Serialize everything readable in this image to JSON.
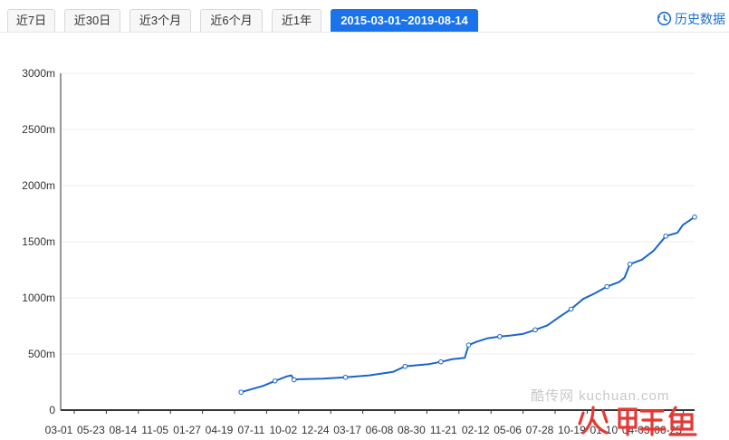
{
  "tabs": [
    {
      "label": "近7日",
      "active": false
    },
    {
      "label": "近30日",
      "active": false
    },
    {
      "label": "近3个月",
      "active": false
    },
    {
      "label": "近6个月",
      "active": false
    },
    {
      "label": "近1年",
      "active": false
    },
    {
      "label": "2015-03-01~2019-08-14",
      "active": true
    }
  ],
  "history_link": {
    "label": "历史数据",
    "icon": "history-clock-icon"
  },
  "watermark": {
    "text": "酷传网 kuchuan.com",
    "logo_text": "火鲤鱼"
  },
  "colors": {
    "accent": "#1a73e8",
    "line": "#1a66cc",
    "logo": "#e53935"
  },
  "chart_data": {
    "type": "line",
    "title": "",
    "xlabel": "",
    "ylabel": "",
    "y_unit": "m",
    "ylim": [
      0,
      3000
    ],
    "y_ticks": [
      0,
      500,
      1000,
      1500,
      2000,
      2500,
      3000
    ],
    "y_tick_labels": [
      "0",
      "500m",
      "1000m",
      "1500m",
      "2000m",
      "2500m",
      "3000m"
    ],
    "x_tick_labels": [
      "03-01",
      "05-23",
      "08-14",
      "11-05",
      "01-27",
      "04-19",
      "07-11",
      "10-02",
      "12-24",
      "03-17",
      "06-08",
      "08-30",
      "11-21",
      "02-12",
      "05-06",
      "07-28",
      "10-19",
      "01-10",
      "04-03",
      "06-25"
    ],
    "grid": true,
    "legend": "none",
    "series": [
      {
        "x": [
          "2016-06-06",
          "2016-07-01",
          "2016-08-01",
          "2016-09-01",
          "2016-10-01",
          "2016-10-13",
          "2016-10-20",
          "2016-11-01",
          "2017-01-01",
          "2017-03-01",
          "2017-05-01",
          "2017-07-01",
          "2017-08-01",
          "2017-09-01",
          "2017-10-01",
          "2017-11-01",
          "2017-12-01",
          "2018-01-01",
          "2018-01-11",
          "2018-02-01",
          "2018-03-01",
          "2018-04-01",
          "2018-05-01",
          "2018-06-01",
          "2018-07-01",
          "2018-08-01",
          "2018-09-01",
          "2018-10-01",
          "2018-11-01",
          "2018-12-01",
          "2019-01-01",
          "2019-02-01",
          "2019-02-15",
          "2019-03-01",
          "2019-04-01",
          "2019-05-01",
          "2019-06-01",
          "2019-07-01",
          "2019-07-15",
          "2019-08-14"
        ],
        "values": [
          160,
          185,
          215,
          260,
          300,
          310,
          270,
          275,
          280,
          292,
          310,
          340,
          390,
          400,
          410,
          430,
          455,
          465,
          580,
          610,
          640,
          655,
          665,
          680,
          715,
          755,
          830,
          900,
          990,
          1040,
          1100,
          1140,
          1180,
          1300,
          1340,
          1420,
          1550,
          1580,
          1650,
          1720
        ],
        "values_2019": []
      }
    ]
  }
}
